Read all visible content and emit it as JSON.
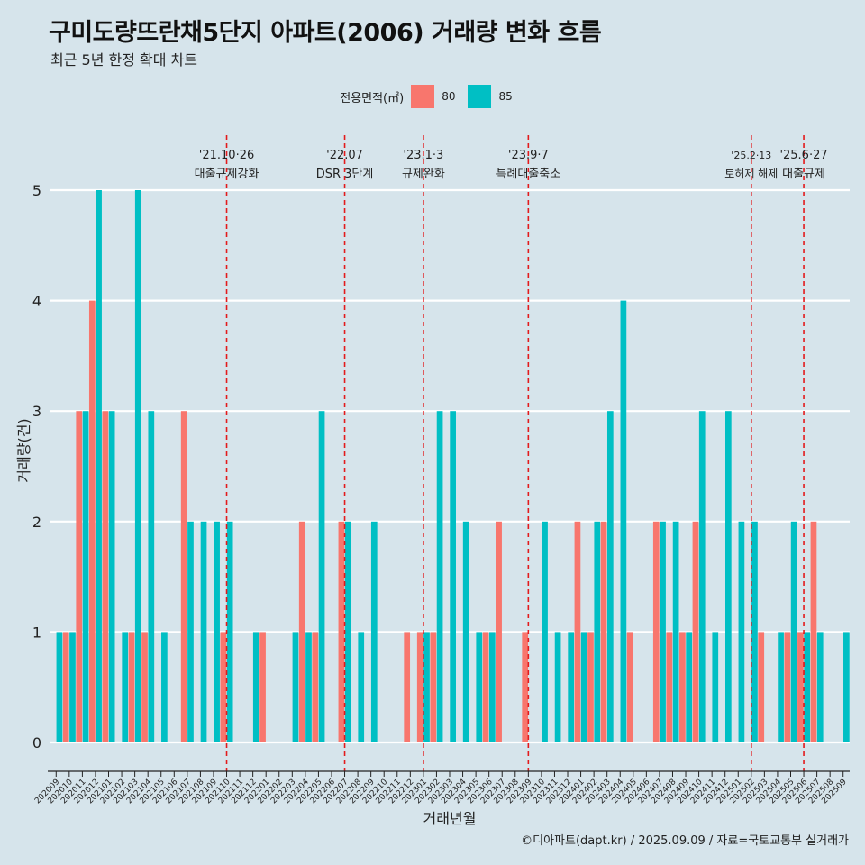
{
  "title": "구미도량뜨란채5단지 아파트(2006) 거래량 변화 흐름",
  "subtitle": "최근 5년 한정 확대 차트",
  "caption": "©디아파트(dapt.kr) / 2025.09.09 / 자료=국토교통부 실거래가",
  "legend": {
    "title": "전용면적(㎡)",
    "items": [
      {
        "label": "80",
        "color": "#f8766d"
      },
      {
        "label": "85",
        "color": "#00bfc4"
      }
    ]
  },
  "chart_data": {
    "type": "bar",
    "xlabel": "거래년월",
    "ylabel": "거래량(건)",
    "ylim": [
      0,
      5
    ],
    "yticks": [
      0,
      1,
      2,
      3,
      4,
      5
    ],
    "categories": [
      "202009",
      "202010",
      "202011",
      "202012",
      "202101",
      "202102",
      "202103",
      "202104",
      "202105",
      "202106",
      "202107",
      "202108",
      "202109",
      "202110",
      "202111",
      "202112",
      "202201",
      "202202",
      "202203",
      "202204",
      "202205",
      "202206",
      "202207",
      "202208",
      "202209",
      "202210",
      "202211",
      "202212",
      "202301",
      "202302",
      "202303",
      "202304",
      "202305",
      "202306",
      "202307",
      "202308",
      "202309",
      "202310",
      "202311",
      "202312",
      "202401",
      "202402",
      "202403",
      "202404",
      "202405",
      "202406",
      "202407",
      "202408",
      "202409",
      "202410",
      "202411",
      "202412",
      "202501",
      "202502",
      "202503",
      "202504",
      "202505",
      "202506",
      "202507",
      "202508",
      "202509"
    ],
    "bars": [
      {
        "x": "202009",
        "s": "85",
        "v": 1
      },
      {
        "x": "202010",
        "s": "80",
        "v": 1
      },
      {
        "x": "202010",
        "s": "85",
        "v": 1
      },
      {
        "x": "202011",
        "s": "80",
        "v": 3
      },
      {
        "x": "202011",
        "s": "85",
        "v": 3
      },
      {
        "x": "202012",
        "s": "80",
        "v": 4
      },
      {
        "x": "202012",
        "s": "85",
        "v": 5
      },
      {
        "x": "202101",
        "s": "80",
        "v": 3
      },
      {
        "x": "202101",
        "s": "85",
        "v": 3
      },
      {
        "x": "202102",
        "s": "85",
        "v": 1
      },
      {
        "x": "202103",
        "s": "80",
        "v": 1
      },
      {
        "x": "202103",
        "s": "85",
        "v": 5
      },
      {
        "x": "202104",
        "s": "80",
        "v": 1
      },
      {
        "x": "202104",
        "s": "85",
        "v": 3
      },
      {
        "x": "202105",
        "s": "85",
        "v": 1
      },
      {
        "x": "202107",
        "s": "80",
        "v": 3
      },
      {
        "x": "202107",
        "s": "85",
        "v": 2
      },
      {
        "x": "202108",
        "s": "85",
        "v": 2
      },
      {
        "x": "202109",
        "s": "85",
        "v": 2
      },
      {
        "x": "202110",
        "s": "80",
        "v": 1
      },
      {
        "x": "202110",
        "s": "85",
        "v": 2
      },
      {
        "x": "202112",
        "s": "85",
        "v": 1
      },
      {
        "x": "202201",
        "s": "80",
        "v": 1
      },
      {
        "x": "202203",
        "s": "85",
        "v": 1
      },
      {
        "x": "202204",
        "s": "80",
        "v": 2
      },
      {
        "x": "202204",
        "s": "85",
        "v": 1
      },
      {
        "x": "202205",
        "s": "80",
        "v": 1
      },
      {
        "x": "202205",
        "s": "85",
        "v": 3
      },
      {
        "x": "202207",
        "s": "80",
        "v": 2
      },
      {
        "x": "202207",
        "s": "85",
        "v": 2
      },
      {
        "x": "202208",
        "s": "85",
        "v": 1
      },
      {
        "x": "202209",
        "s": "85",
        "v": 2
      },
      {
        "x": "202212",
        "s": "80",
        "v": 1
      },
      {
        "x": "202301",
        "s": "80",
        "v": 1
      },
      {
        "x": "202301",
        "s": "85",
        "v": 1
      },
      {
        "x": "202302",
        "s": "80",
        "v": 1
      },
      {
        "x": "202302",
        "s": "85",
        "v": 3
      },
      {
        "x": "202303",
        "s": "85",
        "v": 3
      },
      {
        "x": "202304",
        "s": "85",
        "v": 2
      },
      {
        "x": "202305",
        "s": "85",
        "v": 1
      },
      {
        "x": "202306",
        "s": "80",
        "v": 1
      },
      {
        "x": "202306",
        "s": "85",
        "v": 1
      },
      {
        "x": "202307",
        "s": "80",
        "v": 2
      },
      {
        "x": "202309",
        "s": "80",
        "v": 1
      },
      {
        "x": "202310",
        "s": "85",
        "v": 2
      },
      {
        "x": "202311",
        "s": "85",
        "v": 1
      },
      {
        "x": "202312",
        "s": "85",
        "v": 1
      },
      {
        "x": "202401",
        "s": "80",
        "v": 2
      },
      {
        "x": "202401",
        "s": "85",
        "v": 1
      },
      {
        "x": "202402",
        "s": "80",
        "v": 1
      },
      {
        "x": "202402",
        "s": "85",
        "v": 2
      },
      {
        "x": "202403",
        "s": "80",
        "v": 2
      },
      {
        "x": "202403",
        "s": "85",
        "v": 3
      },
      {
        "x": "202404",
        "s": "85",
        "v": 4
      },
      {
        "x": "202405",
        "s": "80",
        "v": 1
      },
      {
        "x": "202407",
        "s": "80",
        "v": 2
      },
      {
        "x": "202407",
        "s": "85",
        "v": 2
      },
      {
        "x": "202408",
        "s": "80",
        "v": 1
      },
      {
        "x": "202408",
        "s": "85",
        "v": 2
      },
      {
        "x": "202409",
        "s": "80",
        "v": 1
      },
      {
        "x": "202409",
        "s": "85",
        "v": 1
      },
      {
        "x": "202410",
        "s": "80",
        "v": 2
      },
      {
        "x": "202410",
        "s": "85",
        "v": 3
      },
      {
        "x": "202411",
        "s": "85",
        "v": 1
      },
      {
        "x": "202412",
        "s": "85",
        "v": 3
      },
      {
        "x": "202501",
        "s": "85",
        "v": 2
      },
      {
        "x": "202502",
        "s": "85",
        "v": 2
      },
      {
        "x": "202503",
        "s": "80",
        "v": 1
      },
      {
        "x": "202504",
        "s": "85",
        "v": 1
      },
      {
        "x": "202505",
        "s": "80",
        "v": 1
      },
      {
        "x": "202505",
        "s": "85",
        "v": 2
      },
      {
        "x": "202506",
        "s": "80",
        "v": 1
      },
      {
        "x": "202506",
        "s": "85",
        "v": 1
      },
      {
        "x": "202507",
        "s": "80",
        "v": 2
      },
      {
        "x": "202507",
        "s": "85",
        "v": 1
      },
      {
        "x": "202509",
        "s": "85",
        "v": 1
      }
    ],
    "events": [
      {
        "x": "202110",
        "date": "'21.10·26",
        "label": "대출규제강화"
      },
      {
        "x": "202207",
        "date": "'22.07",
        "label": "DSR 3단계"
      },
      {
        "x": "202301",
        "date": "'23.1·3",
        "label": "규제완화"
      },
      {
        "x": "202309",
        "date": "'23.9·7",
        "label": "특례대출축소"
      },
      {
        "x": "202502",
        "date": "'25.2·13",
        "label": "토허제 해제"
      },
      {
        "x": "202506",
        "date": "'25.6·27",
        "label": "대출규제"
      }
    ]
  }
}
